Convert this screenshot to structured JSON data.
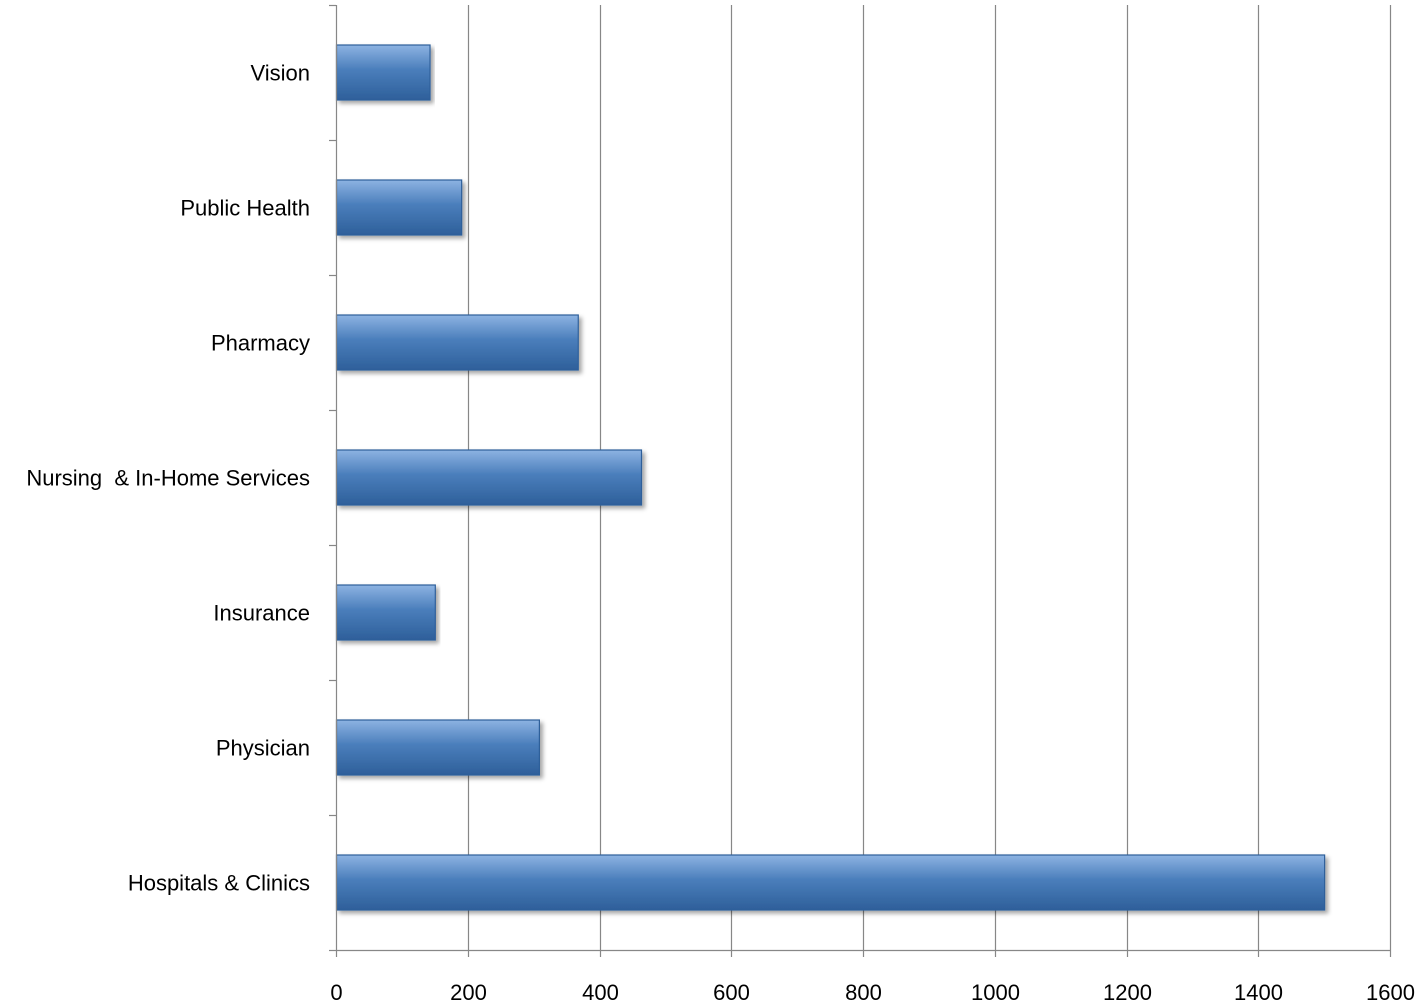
{
  "chart_data": {
    "type": "bar",
    "orientation": "horizontal",
    "categories": [
      "Hospitals & Clinics",
      "Physician",
      "Insurance",
      "Nursing  & In-Home Services",
      "Pharmacy",
      "Public Health",
      "Vision"
    ],
    "values": [
      1500,
      308,
      150,
      463,
      367,
      190,
      142
    ],
    "xlim": [
      0,
      1600
    ],
    "x_ticks": [
      "0",
      "200",
      "400",
      "600",
      "800",
      "1000",
      "1200",
      "1400",
      "1600"
    ],
    "grid": "vertical",
    "legend": "none",
    "title": "",
    "xlabel": "",
    "ylabel": "",
    "colors": {
      "bar": "#4a7ebb",
      "bar_light": "#8db3e2",
      "bar_dark": "#2e5f9a",
      "gridline": "#878787",
      "axis": "#878787"
    }
  }
}
